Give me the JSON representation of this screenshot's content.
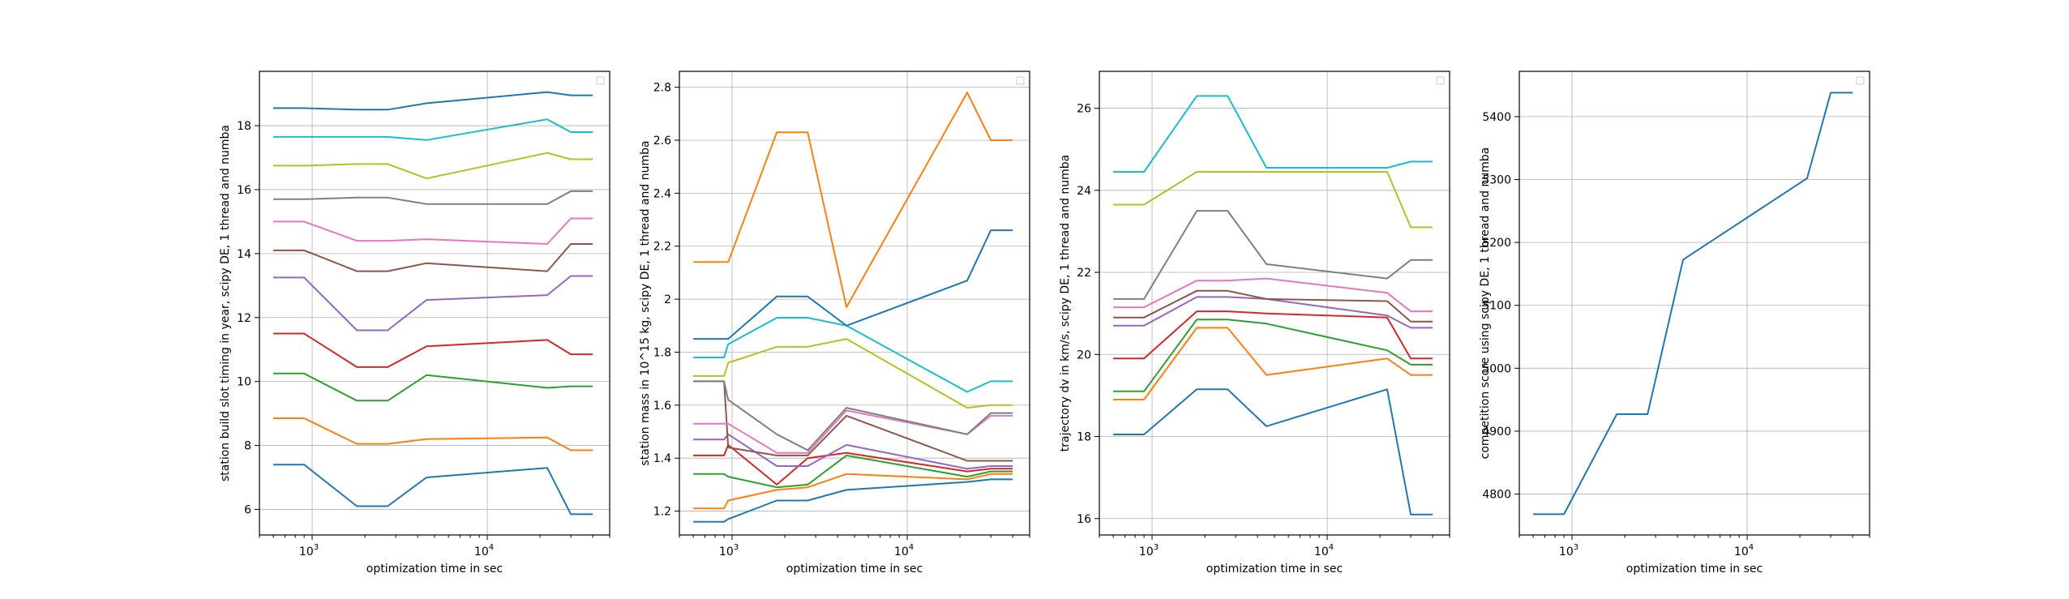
{
  "chart_data": [
    {
      "type": "line",
      "xlabel": "optimization time in sec",
      "ylabel": "station build slot timing in year, scipy DE, 1 thread and numba",
      "xscale": "log",
      "xlim": [
        500,
        50000
      ],
      "ylim": [
        5.2,
        19.7
      ],
      "grid": true,
      "legend": "top-right (empty)",
      "x_ticks": [
        {
          "value": 1000,
          "base": "10",
          "exp": "3"
        },
        {
          "value": 10000,
          "base": "10",
          "exp": "4"
        }
      ],
      "y_ticks": [
        6,
        8,
        10,
        12,
        14,
        16,
        18
      ],
      "x": [
        600,
        900,
        1800,
        2700,
        4500,
        22000,
        30000,
        40000
      ],
      "series": [
        {
          "color": "#1f77b4",
          "values": [
            7.4,
            7.4,
            6.1,
            6.1,
            7.0,
            7.3,
            5.85,
            5.85
          ]
        },
        {
          "color": "#ff7f0e",
          "values": [
            8.85,
            8.85,
            8.05,
            8.05,
            8.2,
            8.25,
            7.85,
            7.85
          ]
        },
        {
          "color": "#2ca02c",
          "values": [
            10.25,
            10.25,
            9.4,
            9.4,
            10.2,
            9.8,
            9.85,
            9.85
          ]
        },
        {
          "color": "#d62728",
          "values": [
            11.5,
            11.5,
            10.45,
            10.45,
            11.1,
            11.3,
            10.85,
            10.85
          ]
        },
        {
          "color": "#9467bd",
          "values": [
            13.25,
            13.25,
            11.6,
            11.6,
            12.55,
            12.7,
            13.3,
            13.3
          ]
        },
        {
          "color": "#8c564b",
          "values": [
            14.1,
            14.1,
            13.45,
            13.45,
            13.7,
            13.45,
            14.3,
            14.3
          ]
        },
        {
          "color": "#e377c2",
          "values": [
            15.0,
            15.0,
            14.4,
            14.4,
            14.45,
            14.3,
            15.1,
            15.1
          ]
        },
        {
          "color": "#7f7f7f",
          "values": [
            15.7,
            15.7,
            15.75,
            15.75,
            15.55,
            15.55,
            15.95,
            15.95
          ]
        },
        {
          "color": "#bcbd22",
          "values": [
            16.75,
            16.75,
            16.8,
            16.8,
            16.35,
            17.15,
            16.95,
            16.95
          ]
        },
        {
          "color": "#17becf",
          "values": [
            17.65,
            17.65,
            17.65,
            17.65,
            17.55,
            18.2,
            17.8,
            17.8
          ]
        },
        {
          "color": "#1f77b4",
          "values": [
            18.55,
            18.55,
            18.5,
            18.5,
            18.7,
            19.05,
            18.95,
            18.95
          ]
        }
      ]
    },
    {
      "type": "line",
      "xlabel": "optimization time in sec",
      "ylabel": "station mass in 10^15 kg, scipy DE, 1 thread and numba",
      "xscale": "log",
      "xlim": [
        500,
        50000
      ],
      "ylim": [
        1.11,
        2.86
      ],
      "grid": true,
      "legend": "top-right (empty)",
      "x_ticks": [
        {
          "value": 1000,
          "base": "10",
          "exp": "3"
        },
        {
          "value": 10000,
          "base": "10",
          "exp": "4"
        }
      ],
      "y_ticks": [
        1.2,
        1.4,
        1.6,
        1.8,
        2.0,
        2.2,
        2.4,
        2.6,
        2.8
      ],
      "x": [
        600,
        900,
        950,
        1800,
        2700,
        4500,
        22000,
        30000,
        40000
      ],
      "series": [
        {
          "color": "#1f77b4",
          "values": [
            1.16,
            1.16,
            1.17,
            1.24,
            1.24,
            1.28,
            1.31,
            1.32,
            1.32
          ]
        },
        {
          "color": "#ff7f0e",
          "values": [
            1.21,
            1.21,
            1.24,
            1.28,
            1.29,
            1.34,
            1.32,
            1.34,
            1.34
          ]
        },
        {
          "color": "#2ca02c",
          "values": [
            1.34,
            1.34,
            1.33,
            1.29,
            1.3,
            1.41,
            1.33,
            1.35,
            1.35
          ]
        },
        {
          "color": "#d62728",
          "values": [
            1.41,
            1.41,
            1.45,
            1.3,
            1.4,
            1.42,
            1.35,
            1.36,
            1.36
          ]
        },
        {
          "color": "#9467bd",
          "values": [
            1.47,
            1.47,
            1.49,
            1.37,
            1.37,
            1.45,
            1.36,
            1.37,
            1.37
          ]
        },
        {
          "color": "#8c564b",
          "values": [
            1.69,
            1.69,
            1.44,
            1.41,
            1.41,
            1.56,
            1.39,
            1.39,
            1.39
          ]
        },
        {
          "color": "#e377c2",
          "values": [
            1.53,
            1.53,
            1.53,
            1.42,
            1.42,
            1.58,
            1.49,
            1.56,
            1.56
          ]
        },
        {
          "color": "#7f7f7f",
          "values": [
            1.69,
            1.69,
            1.62,
            1.49,
            1.43,
            1.59,
            1.49,
            1.57,
            1.57
          ]
        },
        {
          "color": "#bcbd22",
          "values": [
            1.71,
            1.71,
            1.76,
            1.82,
            1.82,
            1.85,
            1.59,
            1.6,
            1.6
          ]
        },
        {
          "color": "#17becf",
          "values": [
            1.78,
            1.78,
            1.83,
            1.93,
            1.93,
            1.9,
            1.65,
            1.69,
            1.69
          ]
        },
        {
          "color": "#1f77b4",
          "values": [
            1.85,
            1.85,
            1.85,
            2.01,
            2.01,
            1.9,
            2.07,
            2.26,
            2.26
          ]
        },
        {
          "color": "#ff7f0e",
          "values": [
            2.14,
            2.14,
            2.14,
            2.63,
            2.63,
            1.97,
            2.78,
            2.6,
            2.6
          ]
        }
      ]
    },
    {
      "type": "line",
      "xlabel": "optimization time in sec",
      "ylabel": "trajectory dv in km/s, scipy DE, 1 thread and numba",
      "xscale": "log",
      "xlim": [
        500,
        50000
      ],
      "ylim": [
        15.6,
        26.9
      ],
      "grid": true,
      "legend": "top-right (empty)",
      "x_ticks": [
        {
          "value": 1000,
          "base": "10",
          "exp": "3"
        },
        {
          "value": 10000,
          "base": "10",
          "exp": "4"
        }
      ],
      "y_ticks": [
        16,
        18,
        20,
        22,
        24,
        26
      ],
      "x": [
        600,
        900,
        1800,
        2700,
        4500,
        22000,
        30000,
        40000
      ],
      "series": [
        {
          "color": "#1f77b4",
          "values": [
            18.05,
            18.05,
            19.15,
            19.15,
            18.25,
            19.15,
            16.1,
            16.1
          ]
        },
        {
          "color": "#ff7f0e",
          "values": [
            18.9,
            18.9,
            20.65,
            20.65,
            19.5,
            19.9,
            19.5,
            19.5
          ]
        },
        {
          "color": "#2ca02c",
          "values": [
            19.1,
            19.1,
            20.85,
            20.85,
            20.75,
            20.1,
            19.75,
            19.75
          ]
        },
        {
          "color": "#d62728",
          "values": [
            19.9,
            19.9,
            21.05,
            21.05,
            21.0,
            20.9,
            19.9,
            19.9
          ]
        },
        {
          "color": "#9467bd",
          "values": [
            20.7,
            20.7,
            21.4,
            21.4,
            21.35,
            20.95,
            20.65,
            20.65
          ]
        },
        {
          "color": "#8c564b",
          "values": [
            20.9,
            20.9,
            21.55,
            21.55,
            21.35,
            21.3,
            20.8,
            20.8
          ]
        },
        {
          "color": "#e377c2",
          "values": [
            21.15,
            21.15,
            21.8,
            21.8,
            21.85,
            21.5,
            21.05,
            21.05
          ]
        },
        {
          "color": "#7f7f7f",
          "values": [
            21.35,
            21.35,
            23.5,
            23.5,
            22.2,
            21.85,
            22.3,
            22.3
          ]
        },
        {
          "color": "#bcbd22",
          "values": [
            23.65,
            23.65,
            24.45,
            24.45,
            24.45,
            24.45,
            23.1,
            23.1
          ]
        },
        {
          "color": "#17becf",
          "values": [
            24.45,
            24.45,
            26.3,
            26.3,
            24.55,
            24.55,
            24.7,
            24.7
          ]
        }
      ]
    },
    {
      "type": "line",
      "xlabel": "optimization time in sec",
      "ylabel": "competition score using scipy DE, 1 thread and numba",
      "xscale": "log",
      "xlim": [
        500,
        50000
      ],
      "ylim": [
        4735,
        5472
      ],
      "grid": true,
      "legend": "top-right (empty)",
      "x_ticks": [
        {
          "value": 1000,
          "base": "10",
          "exp": "3"
        },
        {
          "value": 10000,
          "base": "10",
          "exp": "4"
        }
      ],
      "y_ticks": [
        4800,
        4900,
        5000,
        5100,
        5200,
        5300,
        5400
      ],
      "x": [
        600,
        900,
        1800,
        2700,
        4300,
        4500,
        22000,
        30000,
        40000
      ],
      "series": [
        {
          "color": "#1f77b4",
          "values": [
            4768,
            4768,
            4927,
            4927,
            5172,
            5176,
            5302,
            5438,
            5438
          ]
        }
      ]
    }
  ]
}
